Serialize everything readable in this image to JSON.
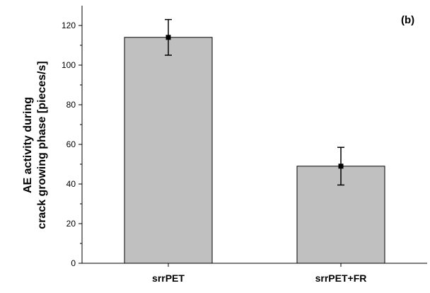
{
  "chart_data": {
    "type": "bar",
    "panel_label": "(b)",
    "categories": [
      "srrPET",
      "srrPET+FR"
    ],
    "values": [
      114,
      49
    ],
    "errors": [
      9,
      9.5
    ],
    "ylabel_lines": [
      "AE activity during",
      "crack growing phase [pieces/s]"
    ],
    "xlabel": "",
    "ylim": [
      0,
      130
    ],
    "yticks": [
      0,
      20,
      40,
      60,
      80,
      100,
      120
    ],
    "bar_color": "#c0c0c0",
    "grid": false
  }
}
